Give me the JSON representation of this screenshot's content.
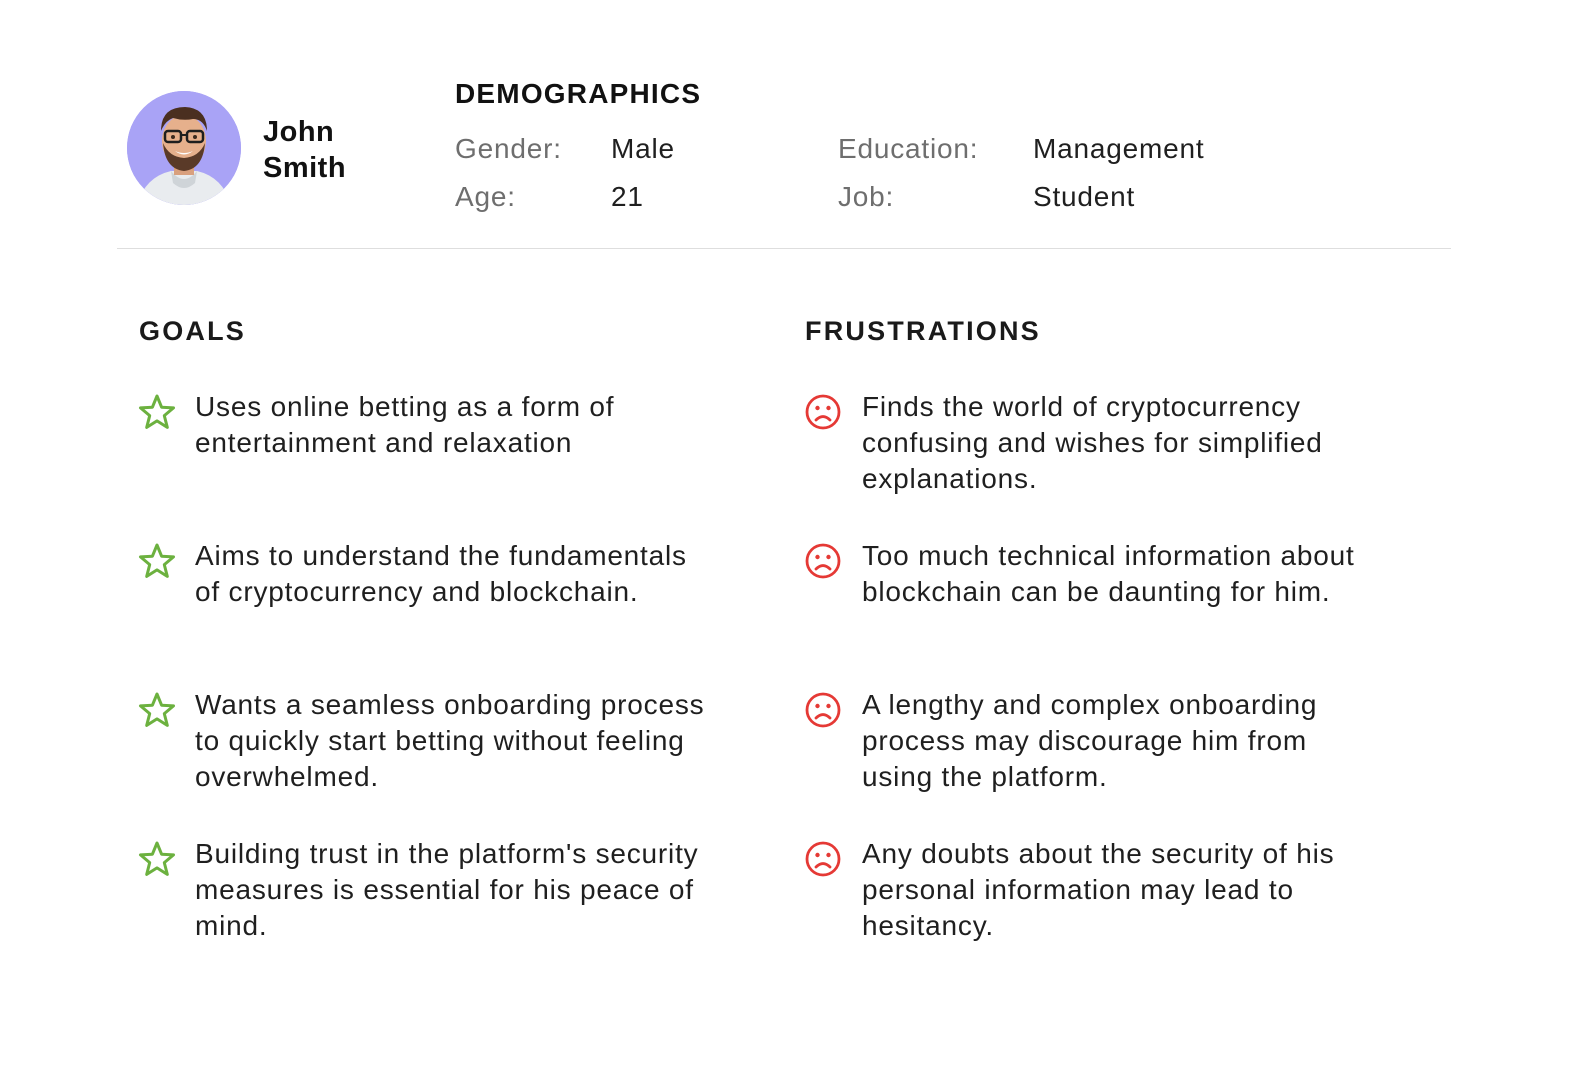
{
  "persona": {
    "first_name": "John",
    "last_name": "Smith"
  },
  "demographics": {
    "title": "DEMOGRAPHICS",
    "gender_label": "Gender:",
    "gender_value": "Male",
    "age_label": "Age:",
    "age_value": "21",
    "education_label": "Education:",
    "education_value": "Management",
    "job_label": "Job:",
    "job_value": "Student"
  },
  "goals": {
    "title": "GOALS",
    "icon": "star-icon",
    "icon_color": "#6cb13f",
    "items": [
      {
        "text": "Uses online betting as a form of entertainment and relaxation"
      },
      {
        "text": "Aims to understand the fundamentals of cryptocurrency and blockchain."
      },
      {
        "text": "Wants a seamless onboarding process to quickly start betting without feeling overwhelmed."
      },
      {
        "text": "Building trust in the platform's security measures is essential for his peace of mind."
      }
    ]
  },
  "frustrations": {
    "title": "FRUSTRATIONS",
    "icon": "sad-face-icon",
    "icon_color": "#e53935",
    "items": [
      {
        "text": "Finds the world of cryptocurrency confusing and wishes for simplified explanations."
      },
      {
        "text": "Too much technical information about blockchain can be daunting for him."
      },
      {
        "text": "A lengthy and complex onboarding process may discourage him from using the platform."
      },
      {
        "text": "Any doubts about the security of his personal information may lead to hesitancy."
      }
    ]
  }
}
